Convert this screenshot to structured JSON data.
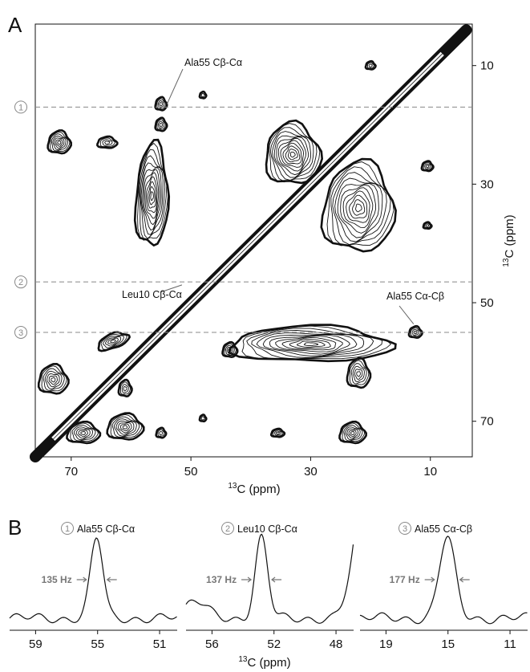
{
  "panelA": {
    "letter": "A",
    "xaxis": {
      "ticks": [
        70,
        50,
        30,
        10
      ],
      "label_base": "C (ppm)",
      "label_sup": "13",
      "range": [
        76,
        3
      ]
    },
    "yaxis": {
      "ticks": [
        10,
        30,
        50,
        70
      ],
      "label_base": "C (ppm)",
      "label_sup": "13",
      "range": [
        3,
        76
      ]
    },
    "slices": [
      {
        "num": "1",
        "ppm": 17
      },
      {
        "num": "2",
        "ppm": 46.5
      },
      {
        "num": "3",
        "ppm": 55
      }
    ],
    "annotations": [
      {
        "text": "Ala55 Cβ-Cα"
      },
      {
        "text": "Leu10 Cβ-Cα"
      },
      {
        "text": "Ala55 Cα-Cβ"
      }
    ]
  },
  "panelB": {
    "letter": "B",
    "xlabel_base": "C (ppm)",
    "xlabel_sup": "13",
    "panels": [
      {
        "num": "1",
        "title": "Ala55 Cβ-Cα",
        "ticks": [
          59,
          55,
          51
        ],
        "width": "135 Hz"
      },
      {
        "num": "2",
        "title": "Leu10 Cβ-Cα",
        "ticks": [
          56,
          52,
          48
        ],
        "width": "137 Hz"
      },
      {
        "num": "3",
        "title": "Ala55 Cα-Cβ",
        "ticks": [
          19,
          15,
          11
        ],
        "width": "177 Hz"
      }
    ]
  },
  "colors": {
    "ink": "#111111",
    "guide": "#888888",
    "hz": "#777777"
  }
}
